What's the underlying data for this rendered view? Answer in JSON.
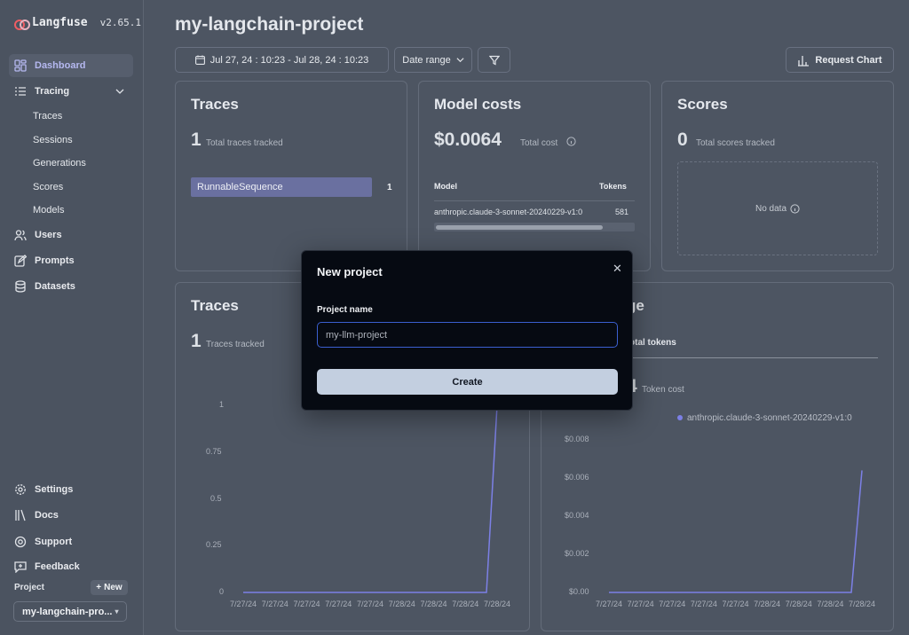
{
  "brand": {
    "name": "Langfuse",
    "version": "v2.65.1"
  },
  "sidebar": {
    "items": [
      {
        "label": "Dashboard",
        "icon": "dashboard-icon"
      },
      {
        "label": "Tracing",
        "icon": "tracing-icon"
      },
      {
        "label": "Users",
        "icon": "users-icon"
      },
      {
        "label": "Prompts",
        "icon": "prompts-icon"
      },
      {
        "label": "Datasets",
        "icon": "datasets-icon"
      },
      {
        "label": "Settings",
        "icon": "settings-icon"
      },
      {
        "label": "Docs",
        "icon": "docs-icon"
      },
      {
        "label": "Support",
        "icon": "support-icon"
      },
      {
        "label": "Feedback",
        "icon": "feedback-icon"
      }
    ],
    "tracing_sub": [
      "Traces",
      "Sessions",
      "Generations",
      "Scores",
      "Models"
    ],
    "project_label": "Project",
    "new_label": "New",
    "project_value": "my-langchain-pro..."
  },
  "header": {
    "title": "my-langchain-project",
    "date_range_value": "Jul 27, 24 : 10:23 - Jul 28, 24 : 10:23",
    "date_range_button": "Date range",
    "request_chart": "Request Chart"
  },
  "cards": {
    "traces": {
      "title": "Traces",
      "count": "1",
      "caption": "Total traces tracked",
      "bar_label": "RunnableSequence",
      "bar_value": "1"
    },
    "model_costs": {
      "title": "Model costs",
      "value": "$0.0064",
      "caption": "Total cost",
      "col_model": "Model",
      "col_tokens": "Tokens",
      "row_model": "anthropic.claude-3-sonnet-20240229-v1:0",
      "row_tokens": "581"
    },
    "scores": {
      "title": "Scores",
      "count": "0",
      "caption": "Total scores tracked",
      "empty": "No data"
    },
    "traces_chart": {
      "title": "Traces",
      "count": "1",
      "caption": "Traces tracked"
    },
    "usage_chart": {
      "title_fragment": "ge",
      "tab_fragment": "otal tokens",
      "value_fragment": "4",
      "caption": "Token cost",
      "legend": "anthropic.claude-3-sonnet-20240229-v1:0"
    }
  },
  "chart_data": [
    {
      "type": "line",
      "x": [
        "7/27/24",
        "7/27/24",
        "7/27/24",
        "7/27/24",
        "7/27/24",
        "7/28/24",
        "7/28/24",
        "7/28/24",
        "7/28/24"
      ],
      "values": [
        0,
        0,
        0,
        0,
        0,
        0,
        0,
        0,
        1
      ],
      "yticks": [
        "1",
        "0.75",
        "0.5",
        "0.25",
        "0"
      ],
      "ylim": [
        0,
        1
      ]
    },
    {
      "type": "line",
      "x": [
        "7/27/24",
        "7/27/24",
        "7/27/24",
        "7/27/24",
        "7/27/24",
        "7/28/24",
        "7/28/24",
        "7/28/24",
        "7/28/24"
      ],
      "series": [
        {
          "name": "anthropic.claude-3-sonnet-20240229-v1:0",
          "values": [
            0,
            0,
            0,
            0,
            0,
            0,
            0,
            0,
            0.0064
          ]
        }
      ],
      "yticks": [
        "$0.008",
        "$0.006",
        "$0.004",
        "$0.002",
        "$0.00"
      ],
      "ylim": [
        0,
        0.008
      ]
    }
  ],
  "modal": {
    "title": "New project",
    "field_label": "Project name",
    "placeholder": "my-llm-project",
    "submit": "Create"
  },
  "colors": {
    "accent": "#7c80e6",
    "bar": "#6a70a0",
    "modal_bg": "#060a12"
  }
}
